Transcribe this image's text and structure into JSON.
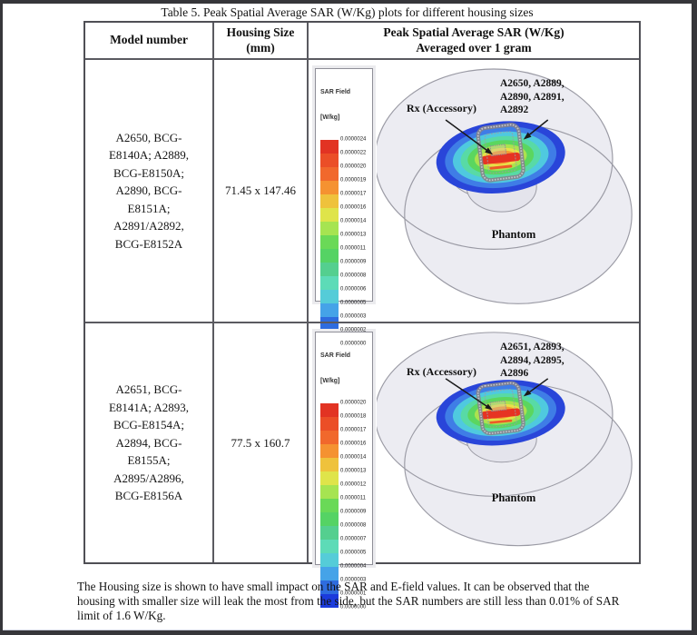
{
  "page": {
    "title": "Table 5. Peak Spatial Average SAR (W/Kg) plots for different housing sizes",
    "footer_paragraph": "The Housing size is shown to have small impact on the SAR and E-field values. It can be observed that the housing with smaller size will leak the most from the side, but the SAR numbers are still less than 0.01% of SAR limit of 1.6 W/Kg."
  },
  "table": {
    "headers": [
      "Model number",
      "Housing Size\n(mm)",
      "Peak Spatial Average SAR (W/Kg)\nAveraged over 1 gram"
    ],
    "rows": [
      {
        "model_number": "A2650, BCG-\nE8140A; A2889,\nBCG-E8150A;\nA2890, BCG-\nE8151A;\nA2891/A2892,\nBCG-E8152A",
        "housing_size": "71.45 x 147.46",
        "plot": {
          "legend_title": "SAR Field",
          "legend_unit": "[W/kg]",
          "scale_values": [
            "0.0000024",
            "0.0000022",
            "0.0000020",
            "0.0000019",
            "0.0000017",
            "0.0000016",
            "0.0000014",
            "0.0000013",
            "0.0000011",
            "0.0000009",
            "0.0000008",
            "0.0000006",
            "0.0000005",
            "0.0000003",
            "0.0000002",
            "0.0000000"
          ],
          "label_models": "A2650, A2889,\nA2890, A2891,\nA2892",
          "label_rx": "Rx (Accessory)",
          "label_phantom": "Phantom"
        }
      },
      {
        "model_number": "A2651, BCG-\nE8141A; A2893,\nBCG-E8154A;\nA2894, BCG-\nE8155A;\nA2895/A2896,\nBCG-E8156A",
        "housing_size": "77.5 x 160.7",
        "plot": {
          "legend_title": "SAR Field",
          "legend_unit": "[W/kg]",
          "scale_values": [
            "0.0000020",
            "0.0000018",
            "0.0000017",
            "0.0000016",
            "0.0000014",
            "0.0000013",
            "0.0000012",
            "0.0000011",
            "0.0000009",
            "0.0000008",
            "0.0000007",
            "0.0000005",
            "0.0000004",
            "0.0000003",
            "0.0000001",
            "0.0000000"
          ],
          "label_models": "A2651, A2893,\nA2894, A2895,\nA2896",
          "label_rx": "Rx (Accessory)",
          "label_phantom": "Phantom"
        }
      }
    ]
  },
  "colors": {
    "scale": [
      "#e23323",
      "#eb4e27",
      "#f1682c",
      "#f59231",
      "#efc23c",
      "#dfe44a",
      "#a6e451",
      "#6ad957",
      "#55d364",
      "#54cf8f",
      "#5ddbb7",
      "#55ccd8",
      "#45a3e8",
      "#2e6cdf",
      "#1b3bdc"
    ],
    "heat": [
      "#2945d9",
      "#3f7de6",
      "#4fc9df",
      "#58daa6",
      "#5bd65f",
      "#abe24f",
      "#e8e049",
      "#f59d33",
      "#e63323"
    ],
    "heat_underline": "#ed5a28",
    "phantom_fill": "#ececf2",
    "phantom_outline": "#9a9aa4",
    "device_outline": "#83838c",
    "arrow": "#1a1a1a"
  }
}
